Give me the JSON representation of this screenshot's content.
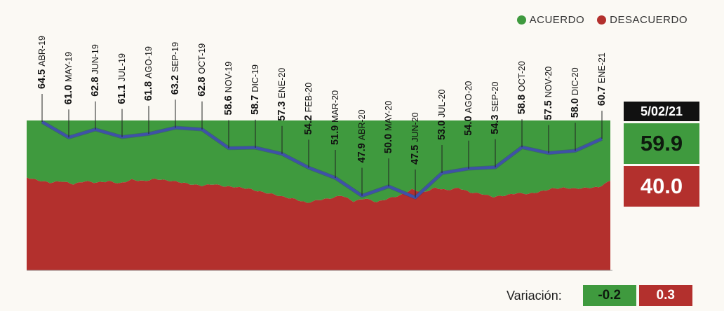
{
  "legend": {
    "agree_label": "ACUERDO",
    "disagree_label": "DESACUERDO",
    "agree_color": "#3f9a3e",
    "disagree_color": "#b3302d"
  },
  "panel": {
    "date": "5/02/21",
    "agree_value": "59.9",
    "disagree_value": "40.0"
  },
  "variation": {
    "label": "Variación:",
    "agree": "-0.2",
    "disagree": "0.3"
  },
  "chart_data": {
    "type": "line",
    "series": [
      {
        "values": [
          64.5,
          61.0,
          62.8,
          61.1,
          61.8,
          63.2,
          62.8,
          58.6,
          58.7,
          57.3,
          54.2,
          51.9,
          47.9,
          50.0,
          47.5,
          53.0,
          54.0,
          54.3,
          58.8,
          57.5,
          58.0,
          60.7
        ],
        "color": "#3f51a8"
      }
    ],
    "categories": [
      "ABR-19",
      "MAY-19",
      "JUN-19",
      "JUL-19",
      "AGO-19",
      "SEP-19",
      "OCT-19",
      "NOV-19",
      "DIC-19",
      "ENE-20",
      "FEB-20",
      "MAR-20",
      "ABR-20",
      "MAY-20",
      "JUN-20",
      "JUL-20",
      "AGO-20",
      "SEP-20",
      "OCT-20",
      "NOV-20",
      "DIC-20",
      "ENE-21"
    ],
    "value_labels": [
      "64.5",
      "61.0",
      "62.8",
      "61.1",
      "61.8",
      "63.2",
      "62.8",
      "58.6",
      "58.7",
      "57.3",
      "54.2",
      "51.9",
      "47.9",
      "50.0",
      "47.5",
      "53.0",
      "54.0",
      "54.3",
      "58.8",
      "57.5",
      "58.0",
      "60.7"
    ],
    "area": {
      "agree_color": "#3f9a3e",
      "disagree_color": "#b3302d",
      "agree_profile": [
        62,
        60,
        58.5,
        59.5,
        57.5,
        59.5,
        58.5,
        59.5,
        58,
        60.5,
        59.5,
        61,
        60,
        59,
        57.5,
        56.5,
        57.5,
        56,
        55.5,
        54.5,
        52.5,
        51,
        49,
        47.5,
        45,
        47,
        48,
        50,
        46,
        48,
        45.5,
        48,
        50,
        54,
        52,
        55,
        53.5,
        55,
        52,
        51,
        49,
        50,
        51.5,
        51,
        52.5,
        54.5,
        55,
        54.5,
        55,
        55.5,
        59.8
      ]
    }
  }
}
